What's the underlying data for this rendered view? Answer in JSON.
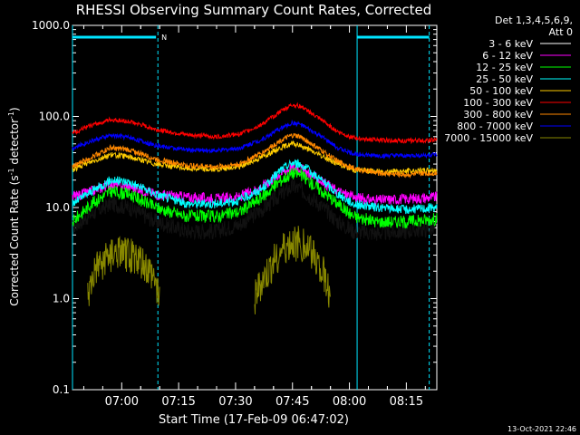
{
  "chart_data": {
    "type": "line",
    "title": "RHESSI Observing Summary Count Rates, Corrected",
    "xlabel": "Start Time (17-Feb-09 06:47:02)",
    "ylabel": "Corrected Count Rate (s⁻¹ detector⁻¹)",
    "ylabel_parts": {
      "a": "Corrected Count Rate (s",
      "b": "-1",
      "c": " detector",
      "d": "-1",
      "e": ")"
    },
    "yscale": "log",
    "ylim": [
      0.1,
      1000
    ],
    "xlim_minutes_after_start": [
      0,
      96
    ],
    "ytick_labels": [
      "0.1",
      "1.0",
      "10.0",
      "100.0",
      "1000.0"
    ],
    "ytick_values": [
      0.1,
      1,
      10,
      100,
      1000
    ],
    "xtick_labels": [
      "07:00",
      "07:15",
      "07:30",
      "07:45",
      "08:00",
      "08:15"
    ],
    "xtick_minutes_after_start": [
      12.97,
      27.97,
      42.97,
      57.97,
      72.97,
      87.97
    ],
    "legend_header": [
      "Det 1,3,4,5,6,9,",
      "Att 0"
    ],
    "legend_placement": "right, outside plot",
    "series": [
      {
        "name": "3 - 6 keV",
        "color": "#000000",
        "x": [
          0,
          5,
          10,
          15,
          22,
          30,
          38,
          44,
          50,
          55,
          58,
          60,
          65,
          70,
          74,
          80,
          88,
          96
        ],
        "y": [
          6,
          8.5,
          11,
          10,
          7,
          5.5,
          5.5,
          6.5,
          9.5,
          14,
          17,
          16,
          11,
          7,
          5.5,
          5.2,
          5.5,
          6
        ]
      },
      {
        "name": "6 - 12 keV",
        "color": "#ff00ff",
        "x": [
          0,
          5,
          10,
          15,
          22,
          30,
          38,
          44,
          50,
          55,
          58,
          60,
          65,
          70,
          74,
          80,
          88,
          96
        ],
        "y": [
          13,
          15,
          18,
          17,
          14,
          13,
          12.5,
          13,
          17,
          24,
          28,
          27,
          20,
          15,
          13,
          12,
          12.5,
          13
        ]
      },
      {
        "name": "12 - 25 keV",
        "color": "#00ff00",
        "x": [
          0,
          5,
          10,
          15,
          22,
          30,
          38,
          44,
          50,
          55,
          58,
          60,
          65,
          70,
          74,
          80,
          88,
          96
        ],
        "y": [
          7,
          11,
          15,
          14,
          10,
          8,
          8,
          9,
          13,
          20,
          24,
          23,
          16,
          11,
          8,
          7,
          7,
          7.5
        ]
      },
      {
        "name": "25 - 50 keV",
        "color": "#00ffff",
        "x": [
          0,
          5,
          10,
          15,
          22,
          30,
          38,
          44,
          50,
          55,
          58,
          60,
          65,
          70,
          74,
          80,
          88,
          96
        ],
        "y": [
          11,
          15,
          20,
          19,
          14,
          11,
          11,
          12,
          16,
          26,
          31,
          30,
          21,
          14,
          11,
          10,
          9.5,
          10
        ]
      },
      {
        "name": "50 - 100 keV",
        "color": "#ffcc00",
        "x": [
          0,
          5,
          10,
          15,
          22,
          30,
          38,
          44,
          50,
          55,
          58,
          60,
          65,
          70,
          74,
          80,
          88,
          96
        ],
        "y": [
          26,
          32,
          38,
          36,
          30,
          27,
          26,
          28,
          36,
          46,
          50,
          48,
          38,
          30,
          26,
          25,
          25,
          26
        ]
      },
      {
        "name": "100 - 300 keV",
        "color": "#ff0000",
        "x": [
          0,
          5,
          10,
          15,
          22,
          30,
          38,
          44,
          50,
          55,
          58,
          60,
          65,
          70,
          74,
          80,
          88,
          96
        ],
        "y": [
          65,
          80,
          92,
          88,
          72,
          63,
          60,
          64,
          82,
          115,
          135,
          130,
          95,
          68,
          58,
          55,
          54,
          55
        ]
      },
      {
        "name": "300 - 800 keV",
        "color": "#ff8800",
        "x": [
          0,
          5,
          10,
          15,
          22,
          30,
          38,
          44,
          50,
          55,
          58,
          60,
          65,
          70,
          74,
          80,
          88,
          96
        ],
        "y": [
          28,
          36,
          45,
          43,
          34,
          29,
          28,
          30,
          40,
          55,
          62,
          60,
          44,
          32,
          27,
          24,
          23,
          24
        ]
      },
      {
        "name": "800 - 7000 keV",
        "color": "#0000ff",
        "x": [
          0,
          5,
          10,
          15,
          22,
          30,
          38,
          44,
          50,
          55,
          58,
          60,
          65,
          70,
          74,
          80,
          88,
          96
        ],
        "y": [
          45,
          54,
          62,
          59,
          48,
          43,
          42,
          45,
          56,
          75,
          85,
          82,
          62,
          45,
          39,
          37,
          37,
          38
        ]
      },
      {
        "name": "7000 - 15000 keV",
        "color": "#888800",
        "segments": [
          {
            "x": [
              4,
              6,
              8,
              10,
              12,
              14,
              16,
              18,
              20,
              22,
              23
            ],
            "y": [
              1,
              2,
              2.5,
              3,
              3,
              3,
              3,
              2.5,
              2,
              1.5,
              1
            ]
          },
          {
            "x": [
              48,
              50,
              52,
              54,
              56,
              58,
              60,
              62,
              64,
              66,
              68
            ],
            "y": [
              1,
              1.5,
              2,
              3,
              3.5,
              4,
              4,
              3.5,
              3,
              2,
              1
            ]
          }
        ]
      }
    ],
    "saa_flag_segments_minutes": [
      [
        0,
        22
      ],
      [
        75,
        94
      ]
    ],
    "saa_flag_label": "N",
    "vertical_markers_minutes": [
      {
        "x": 0,
        "style": "solid"
      },
      {
        "x": 22.5,
        "style": "dashed"
      },
      {
        "x": 75,
        "style": "solid"
      },
      {
        "x": 94,
        "style": "dashed"
      }
    ]
  },
  "footer_date": "13-Oct-2021 22:46"
}
